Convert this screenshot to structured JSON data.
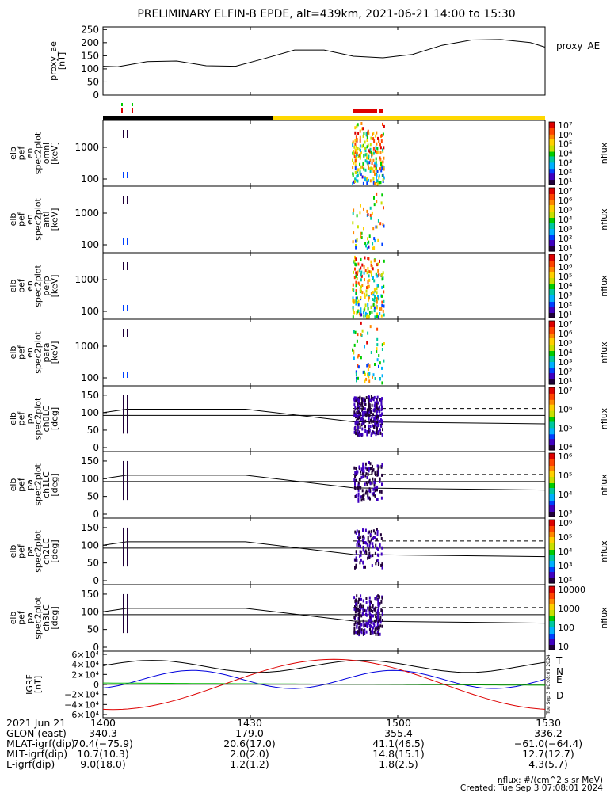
{
  "title": "PRELIMINARY ELFIN-B EPDE, alt=439km, 2021-06-21 14:00 to 15:30",
  "chart_data": {
    "type": "spectrogram",
    "time_range": [
      "14:00",
      "15:30"
    ],
    "x_ticks": [
      "1400",
      "1430",
      "1500",
      "1530"
    ],
    "top_panel": {
      "ylabel": [
        "proxy_ae",
        "[nT]"
      ],
      "ytick_labels": [
        "250",
        "200",
        "150",
        "100",
        "50",
        "0"
      ],
      "ylim": [
        0,
        260
      ],
      "legend": "proxy_AE",
      "series": [
        {
          "name": "proxy_AE",
          "x_minutes": [
            0,
            3,
            9,
            15,
            21,
            27,
            33,
            39,
            45,
            51,
            57,
            63,
            69,
            75,
            81,
            87,
            90
          ],
          "values": [
            110,
            108,
            128,
            130,
            112,
            110,
            140,
            172,
            172,
            148,
            142,
            155,
            190,
            210,
            212,
            200,
            183
          ]
        }
      ]
    },
    "spectrogram_panels": [
      {
        "label": [
          "elb",
          "pef",
          "en",
          "spec2plot",
          "omni",
          "[keV]"
        ],
        "ytick_labels": [
          "1000",
          "100"
        ],
        "colorbar_labels": [
          "10⁷",
          "10⁶",
          "10⁵",
          "10⁴",
          "10³",
          "10²",
          "10¹"
        ],
        "colorbar_title": "nflux"
      },
      {
        "label": [
          "elb",
          "pef",
          "en",
          "spec2plot",
          "anti",
          "[keV]"
        ],
        "ytick_labels": [
          "1000",
          "100"
        ],
        "colorbar_labels": [
          "10⁷",
          "10⁶",
          "10⁵",
          "10⁴",
          "10³",
          "10²",
          "10¹"
        ],
        "colorbar_title": "nflux"
      },
      {
        "label": [
          "elb",
          "pef",
          "en",
          "spec2plot",
          "perp",
          "[keV]"
        ],
        "ytick_labels": [
          "1000",
          "100"
        ],
        "colorbar_labels": [
          "10⁷",
          "10⁶",
          "10⁵",
          "10⁴",
          "10³",
          "10²",
          "10¹"
        ],
        "colorbar_title": "nflux"
      },
      {
        "label": [
          "elb",
          "pef",
          "en",
          "spec2plot",
          "para",
          "[keV]"
        ],
        "ytick_labels": [
          "1000",
          "100"
        ],
        "colorbar_labels": [
          "10⁷",
          "10⁶",
          "10⁵",
          "10⁴",
          "10³",
          "10²",
          "10¹"
        ],
        "colorbar_title": "nflux"
      },
      {
        "label": [
          "elb",
          "pef",
          "pa",
          "spec2plot",
          "ch0LC",
          "[deg]"
        ],
        "ytick_labels": [
          "150",
          "100",
          "50",
          "0"
        ],
        "colorbar_labels": [
          "10⁷",
          "10⁶",
          "10⁵",
          "10⁴"
        ],
        "colorbar_title": "nflux"
      },
      {
        "label": [
          "elb",
          "pef",
          "pa",
          "spec2plot",
          "ch1LC",
          "[deg]"
        ],
        "ytick_labels": [
          "150",
          "100",
          "50",
          "0"
        ],
        "colorbar_labels": [
          "10⁶",
          "10⁵",
          "10⁴",
          "10³"
        ],
        "colorbar_title": "nflux"
      },
      {
        "label": [
          "elb",
          "pef",
          "pa",
          "spec2plot",
          "ch2LC",
          "[deg]"
        ],
        "ytick_labels": [
          "150",
          "100",
          "50",
          "0"
        ],
        "colorbar_labels": [
          "10⁶",
          "10⁵",
          "10⁴",
          "10³",
          "10²"
        ],
        "colorbar_title": "nflux"
      },
      {
        "label": [
          "elb",
          "pef",
          "pa",
          "spec2plot",
          "ch3LC",
          "[deg]"
        ],
        "ytick_labels": [
          "150",
          "100",
          "50",
          "0"
        ],
        "colorbar_labels": [
          "10000",
          "1000",
          "100",
          "10"
        ],
        "colorbar_title": "nflux"
      }
    ],
    "bottom_panel": {
      "ylabel": [
        "IGRF",
        "[nT]"
      ],
      "ytick_labels": [
        "6×10⁴",
        "4×10⁴",
        "2×10⁴",
        "0",
        "−2×10⁴",
        "−4×10⁴",
        "−6×10⁴"
      ],
      "ylim": [
        -60000,
        60000
      ],
      "legend": [
        "T",
        "N",
        "E",
        "D"
      ],
      "legend_colors": [
        "#000000",
        "#0000dd",
        "#00bb00",
        "#dd0000"
      ],
      "side_text": "Tue Sep 3 00:08:01 2024"
    },
    "spin_markers": {
      "colors": [
        "#00cc00",
        "#dd0000"
      ]
    },
    "region_bar": {
      "colors": [
        "#000000",
        "#ffd800"
      ]
    },
    "event_bar": {
      "color": "#dd0000"
    }
  },
  "footer": {
    "date_label": "2021 Jun 21",
    "time_values": [
      "1400",
      "1430",
      "1500",
      "1530"
    ],
    "rows": [
      {
        "label": "GLON (east)",
        "values": [
          "340.3",
          "179.0",
          "355.4",
          "336.2"
        ]
      },
      {
        "label": "MLAT-igrf(dip)",
        "values": [
          "70.4(−75.9)",
          "20.6(17.0)",
          "41.1(46.5)",
          "−61.0(−64.4)"
        ]
      },
      {
        "label": "MLT-igrf(dip)",
        "values": [
          "10.7(10.3)",
          "2.0(2.0)",
          "14.8(15.1)",
          "12.7(12.7)"
        ]
      },
      {
        "label": "L-igrf(dip)",
        "values": [
          "9.0(18.0)",
          "1.2(1.2)",
          "1.8(2.5)",
          "4.3(5.7)"
        ]
      }
    ],
    "nflux_note": "nflux: #/(cm^2 s sr MeV)",
    "created": "Created: Tue Sep  3 07:08:01 2024"
  }
}
